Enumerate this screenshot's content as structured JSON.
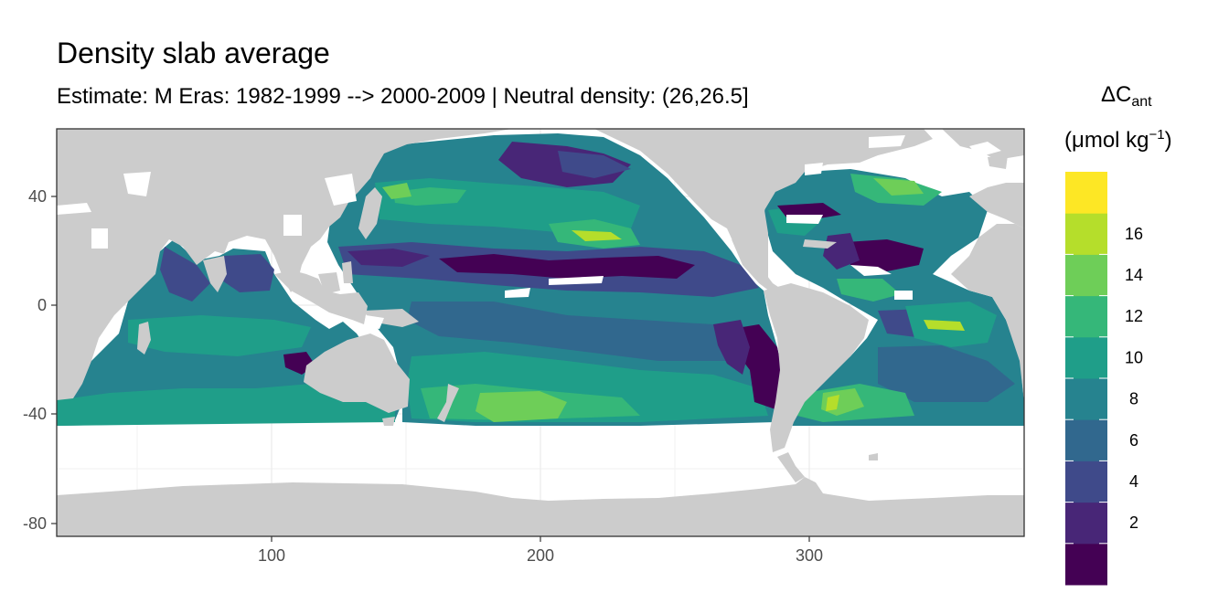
{
  "title": "Density slab average",
  "subtitle": "Estimate: M Eras: 1982-1999 --> 2000-2009 | Neutral density: (26,26.5]",
  "legend": {
    "symbol": "ΔC",
    "subscript": "ant",
    "unit_open": "(μmol kg",
    "unit_sup": "−1",
    "unit_close": ")",
    "breaks": [
      "2",
      "4",
      "6",
      "8",
      "10",
      "12",
      "14",
      "16"
    ],
    "colors": [
      "#440154",
      "#482677",
      "#3f4a8a",
      "#31688e",
      "#26838f",
      "#1f9e89",
      "#35b779",
      "#6ece58",
      "#b5de2b",
      "#fde725"
    ]
  },
  "chart_data": {
    "type": "heatmap",
    "title": "Density slab average",
    "subtitle": "Estimate: M Eras: 1982-1999 --> 2000-2009 | Neutral density: (26,26.5]",
    "x_ticks": [
      "100",
      "200",
      "300"
    ],
    "y_ticks": [
      "40",
      "0",
      "-40",
      "-80"
    ],
    "xlim": [
      20,
      380
    ],
    "ylim": [
      -85,
      65
    ],
    "grid": true,
    "legend_position": "right",
    "land_color": "#cccccc"
  }
}
